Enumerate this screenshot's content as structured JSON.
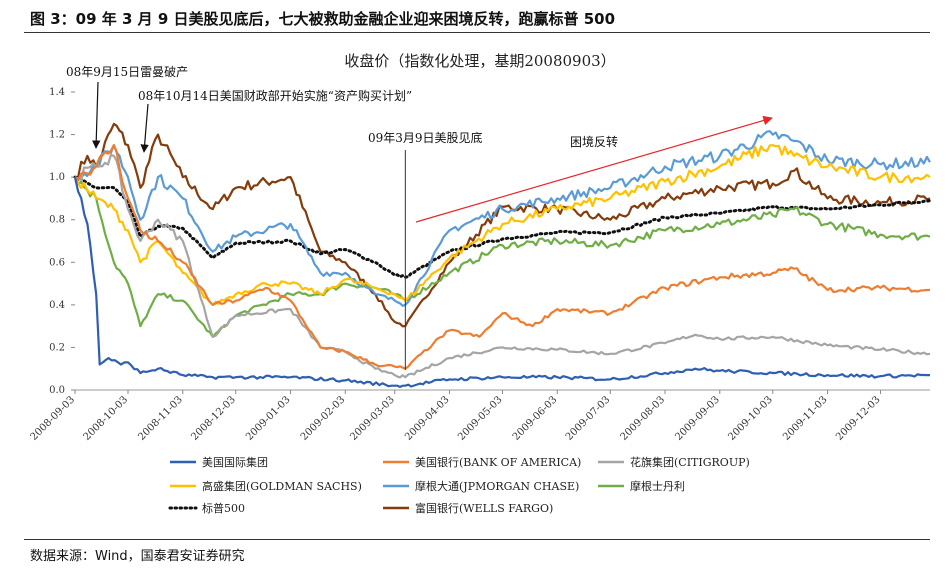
{
  "figure": {
    "title": "图 3：09 年 3 月 9 日美股见底后，七大被救助金融企业迎来困境反转，跑赢标普 500",
    "source": "数据来源：Wind，国泰君安证券研究"
  },
  "chart_data": {
    "type": "line",
    "title": "收盘价（指数化处理，基期20080903）",
    "ylim": [
      0,
      1.4
    ],
    "yticks": [
      "0.0",
      "0.2",
      "0.4",
      "0.6",
      "0.8",
      "1.0",
      "1.2",
      "1.4"
    ],
    "xticks": [
      "2008-09-03",
      "2008-10-03",
      "2008-11-03",
      "2008-12-03",
      "2009-01-03",
      "2009-02-03",
      "2009-03-03",
      "2009-04-03",
      "2009-05-03",
      "2009-06-03",
      "2009-07-03",
      "2009-08-03",
      "2009-09-03",
      "2009-10-03",
      "2009-11-03",
      "2009-12-03"
    ],
    "x_range": [
      "2008-09-03",
      "2009-12-31"
    ],
    "annotations": {
      "lehman": "08年9月15日雷曼破产",
      "tarp": "08年10月14日美国财政部开始实施“资产购买计划”",
      "bottom": "09年3月9日美股见底",
      "reversal": "困境反转"
    },
    "series": [
      {
        "name": "美国国际集团",
        "color": "#2f5fb3",
        "style": "solid",
        "points": [
          [
            "2008-09-03",
            1.0
          ],
          [
            "2008-09-10",
            0.78
          ],
          [
            "2008-09-15",
            0.45
          ],
          [
            "2008-09-17",
            0.12
          ],
          [
            "2008-09-22",
            0.15
          ],
          [
            "2008-09-29",
            0.12
          ],
          [
            "2008-10-03",
            0.13
          ],
          [
            "2008-10-10",
            0.08
          ],
          [
            "2008-10-20",
            0.1
          ],
          [
            "2008-11-03",
            0.07
          ],
          [
            "2008-11-20",
            0.06
          ],
          [
            "2008-12-03",
            0.06
          ],
          [
            "2009-01-03",
            0.06
          ],
          [
            "2009-02-03",
            0.045
          ],
          [
            "2009-03-03",
            0.02
          ],
          [
            "2009-03-09",
            0.02
          ],
          [
            "2009-04-03",
            0.05
          ],
          [
            "2009-05-03",
            0.06
          ],
          [
            "2009-06-03",
            0.06
          ],
          [
            "2009-07-03",
            0.05
          ],
          [
            "2009-08-03",
            0.08
          ],
          [
            "2009-08-20",
            0.1
          ],
          [
            "2009-09-03",
            0.09
          ],
          [
            "2009-10-03",
            0.08
          ],
          [
            "2009-11-03",
            0.07
          ],
          [
            "2009-12-03",
            0.065
          ],
          [
            "2009-12-31",
            0.07
          ]
        ]
      },
      {
        "name": "美国银行(BANK OF AMERICA)",
        "color": "#ed7d31",
        "style": "solid",
        "points": [
          [
            "2008-09-03",
            1.0
          ],
          [
            "2008-09-15",
            1.05
          ],
          [
            "2008-09-25",
            1.15
          ],
          [
            "2008-10-03",
            0.9
          ],
          [
            "2008-10-10",
            0.75
          ],
          [
            "2008-10-20",
            0.7
          ],
          [
            "2008-11-03",
            0.6
          ],
          [
            "2008-11-20",
            0.4
          ],
          [
            "2008-12-03",
            0.42
          ],
          [
            "2008-12-20",
            0.48
          ],
          [
            "2009-01-03",
            0.42
          ],
          [
            "2009-01-20",
            0.2
          ],
          [
            "2009-02-03",
            0.18
          ],
          [
            "2009-02-20",
            0.12
          ],
          [
            "2009-03-03",
            0.11
          ],
          [
            "2009-03-09",
            0.1
          ],
          [
            "2009-03-25",
            0.22
          ],
          [
            "2009-04-03",
            0.28
          ],
          [
            "2009-04-20",
            0.25
          ],
          [
            "2009-05-03",
            0.36
          ],
          [
            "2009-05-20",
            0.3
          ],
          [
            "2009-06-03",
            0.38
          ],
          [
            "2009-07-03",
            0.36
          ],
          [
            "2009-08-03",
            0.48
          ],
          [
            "2009-09-03",
            0.53
          ],
          [
            "2009-10-03",
            0.55
          ],
          [
            "2009-10-15",
            0.57
          ],
          [
            "2009-11-03",
            0.47
          ],
          [
            "2009-12-03",
            0.48
          ],
          [
            "2009-12-31",
            0.47
          ]
        ]
      },
      {
        "name": "花旗集团(CITIGROUP)",
        "color": "#a5a5a5",
        "style": "solid",
        "points": [
          [
            "2008-09-03",
            1.0
          ],
          [
            "2008-09-15",
            1.05
          ],
          [
            "2008-09-25",
            1.1
          ],
          [
            "2008-10-03",
            0.85
          ],
          [
            "2008-10-10",
            0.7
          ],
          [
            "2008-10-20",
            0.8
          ],
          [
            "2008-11-03",
            0.7
          ],
          [
            "2008-11-20",
            0.25
          ],
          [
            "2008-12-03",
            0.35
          ],
          [
            "2009-01-03",
            0.38
          ],
          [
            "2009-01-20",
            0.2
          ],
          [
            "2009-02-03",
            0.18
          ],
          [
            "2009-02-20",
            0.1
          ],
          [
            "2009-03-03",
            0.07
          ],
          [
            "2009-03-09",
            0.06
          ],
          [
            "2009-04-03",
            0.15
          ],
          [
            "2009-05-03",
            0.2
          ],
          [
            "2009-06-03",
            0.19
          ],
          [
            "2009-07-03",
            0.17
          ],
          [
            "2009-08-03",
            0.22
          ],
          [
            "2009-08-20",
            0.26
          ],
          [
            "2009-09-03",
            0.24
          ],
          [
            "2009-10-03",
            0.25
          ],
          [
            "2009-11-03",
            0.21
          ],
          [
            "2009-12-03",
            0.19
          ],
          [
            "2009-12-31",
            0.17
          ]
        ]
      },
      {
        "name": "高盛集团(GOLDMAN SACHS)",
        "color": "#ffc000",
        "style": "solid",
        "points": [
          [
            "2008-09-03",
            1.0
          ],
          [
            "2008-09-15",
            0.9
          ],
          [
            "2008-09-25",
            0.85
          ],
          [
            "2008-10-03",
            0.75
          ],
          [
            "2008-10-10",
            0.6
          ],
          [
            "2008-10-20",
            0.7
          ],
          [
            "2008-11-03",
            0.55
          ],
          [
            "2008-11-20",
            0.4
          ],
          [
            "2008-12-03",
            0.45
          ],
          [
            "2008-12-20",
            0.5
          ],
          [
            "2009-01-03",
            0.5
          ],
          [
            "2009-01-20",
            0.45
          ],
          [
            "2009-02-03",
            0.52
          ],
          [
            "2009-02-20",
            0.48
          ],
          [
            "2009-03-03",
            0.45
          ],
          [
            "2009-03-09",
            0.42
          ],
          [
            "2009-04-03",
            0.62
          ],
          [
            "2009-05-03",
            0.78
          ],
          [
            "2009-06-03",
            0.85
          ],
          [
            "2009-07-03",
            0.9
          ],
          [
            "2009-08-03",
            0.98
          ],
          [
            "2009-09-03",
            1.05
          ],
          [
            "2009-10-03",
            1.15
          ],
          [
            "2009-10-15",
            1.1
          ],
          [
            "2009-11-03",
            1.05
          ],
          [
            "2009-12-03",
            1.0
          ],
          [
            "2009-12-31",
            1.0
          ]
        ]
      },
      {
        "name": "摩根大通(JPMORGAN CHASE)",
        "color": "#5b9bd5",
        "style": "solid",
        "points": [
          [
            "2008-09-03",
            1.0
          ],
          [
            "2008-09-15",
            1.05
          ],
          [
            "2008-09-25",
            1.15
          ],
          [
            "2008-10-03",
            1.0
          ],
          [
            "2008-10-10",
            0.8
          ],
          [
            "2008-10-20",
            1.0
          ],
          [
            "2008-11-03",
            0.9
          ],
          [
            "2008-11-20",
            0.65
          ],
          [
            "2008-12-03",
            0.72
          ],
          [
            "2009-01-03",
            0.78
          ],
          [
            "2009-01-20",
            0.55
          ],
          [
            "2009-02-03",
            0.55
          ],
          [
            "2009-02-20",
            0.45
          ],
          [
            "2009-03-03",
            0.42
          ],
          [
            "2009-03-09",
            0.4
          ],
          [
            "2009-04-03",
            0.75
          ],
          [
            "2009-05-03",
            0.85
          ],
          [
            "2009-06-03",
            0.9
          ],
          [
            "2009-07-03",
            0.95
          ],
          [
            "2009-08-03",
            1.05
          ],
          [
            "2009-09-03",
            1.1
          ],
          [
            "2009-10-03",
            1.2
          ],
          [
            "2009-10-15",
            1.17
          ],
          [
            "2009-11-03",
            1.08
          ],
          [
            "2009-12-03",
            1.06
          ],
          [
            "2009-12-31",
            1.07
          ]
        ]
      },
      {
        "name": "摩根士丹利",
        "color": "#70ad47",
        "style": "solid",
        "points": [
          [
            "2008-09-03",
            1.0
          ],
          [
            "2008-09-15",
            0.9
          ],
          [
            "2008-09-25",
            0.6
          ],
          [
            "2008-10-03",
            0.5
          ],
          [
            "2008-10-10",
            0.3
          ],
          [
            "2008-10-20",
            0.45
          ],
          [
            "2008-11-03",
            0.42
          ],
          [
            "2008-11-20",
            0.25
          ],
          [
            "2008-12-03",
            0.35
          ],
          [
            "2009-01-03",
            0.45
          ],
          [
            "2009-01-20",
            0.45
          ],
          [
            "2009-02-03",
            0.5
          ],
          [
            "2009-02-20",
            0.48
          ],
          [
            "2009-03-03",
            0.45
          ],
          [
            "2009-03-09",
            0.42
          ],
          [
            "2009-04-03",
            0.55
          ],
          [
            "2009-05-03",
            0.68
          ],
          [
            "2009-06-03",
            0.7
          ],
          [
            "2009-07-03",
            0.68
          ],
          [
            "2009-08-03",
            0.75
          ],
          [
            "2009-09-03",
            0.78
          ],
          [
            "2009-10-03",
            0.82
          ],
          [
            "2009-10-15",
            0.85
          ],
          [
            "2009-11-03",
            0.78
          ],
          [
            "2009-12-03",
            0.73
          ],
          [
            "2009-12-31",
            0.72
          ]
        ]
      },
      {
        "name": "标普500",
        "color": "#111111",
        "style": "dotted",
        "points": [
          [
            "2008-09-03",
            1.0
          ],
          [
            "2008-09-15",
            0.95
          ],
          [
            "2008-09-25",
            0.95
          ],
          [
            "2008-10-03",
            0.88
          ],
          [
            "2008-10-10",
            0.72
          ],
          [
            "2008-10-20",
            0.77
          ],
          [
            "2008-11-03",
            0.76
          ],
          [
            "2008-11-20",
            0.62
          ],
          [
            "2008-12-03",
            0.69
          ],
          [
            "2009-01-03",
            0.7
          ],
          [
            "2009-01-20",
            0.64
          ],
          [
            "2009-02-03",
            0.66
          ],
          [
            "2009-02-20",
            0.6
          ],
          [
            "2009-03-03",
            0.54
          ],
          [
            "2009-03-09",
            0.53
          ],
          [
            "2009-04-03",
            0.65
          ],
          [
            "2009-05-03",
            0.71
          ],
          [
            "2009-06-03",
            0.74
          ],
          [
            "2009-07-03",
            0.74
          ],
          [
            "2009-08-03",
            0.81
          ],
          [
            "2009-09-03",
            0.83
          ],
          [
            "2009-10-03",
            0.86
          ],
          [
            "2009-11-03",
            0.85
          ],
          [
            "2009-12-03",
            0.87
          ],
          [
            "2009-12-31",
            0.89
          ]
        ]
      },
      {
        "name": "富国银行(WELLS FARGO)",
        "color": "#843c0c",
        "style": "solid",
        "points": [
          [
            "2008-09-03",
            1.0
          ],
          [
            "2008-09-10",
            1.1
          ],
          [
            "2008-09-15",
            1.05
          ],
          [
            "2008-09-25",
            1.25
          ],
          [
            "2008-10-03",
            1.15
          ],
          [
            "2008-10-10",
            0.95
          ],
          [
            "2008-10-20",
            1.2
          ],
          [
            "2008-11-03",
            1.0
          ],
          [
            "2008-11-20",
            0.85
          ],
          [
            "2008-12-03",
            0.95
          ],
          [
            "2009-01-03",
            1.0
          ],
          [
            "2009-01-20",
            0.65
          ],
          [
            "2009-02-03",
            0.6
          ],
          [
            "2009-02-20",
            0.45
          ],
          [
            "2009-03-03",
            0.32
          ],
          [
            "2009-03-09",
            0.3
          ],
          [
            "2009-04-03",
            0.6
          ],
          [
            "2009-05-03",
            0.86
          ],
          [
            "2009-06-03",
            0.85
          ],
          [
            "2009-07-03",
            0.8
          ],
          [
            "2009-08-03",
            0.9
          ],
          [
            "2009-09-03",
            0.95
          ],
          [
            "2009-10-03",
            0.97
          ],
          [
            "2009-10-15",
            1.03
          ],
          [
            "2009-11-03",
            0.9
          ],
          [
            "2009-12-03",
            0.88
          ],
          [
            "2009-12-31",
            0.9
          ]
        ]
      }
    ]
  }
}
